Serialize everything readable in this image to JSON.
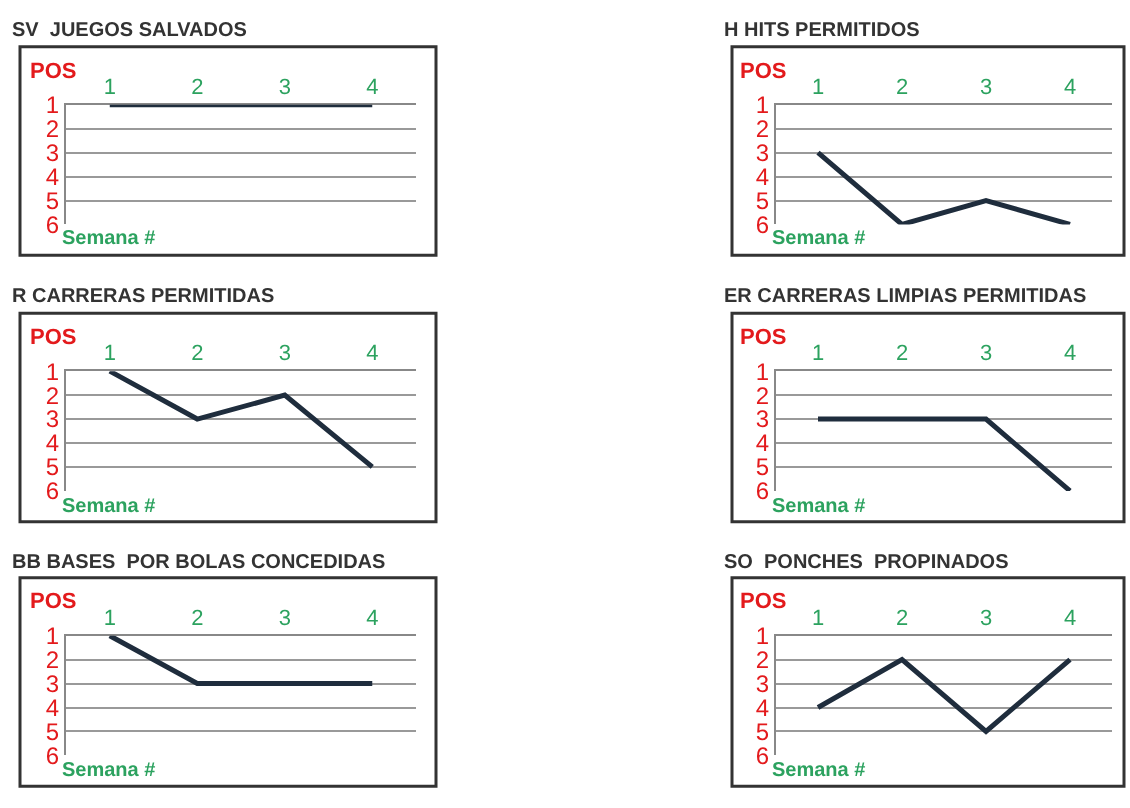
{
  "chart_data": [
    {
      "type": "line",
      "title": "SV  JUEGOS SALVADOS",
      "xlabel": "Semana #",
      "ylabel": "POS",
      "categories": [
        "1",
        "2",
        "3",
        "4"
      ],
      "series": [
        {
          "color": "#1f2d3d",
          "values": [
            1,
            1,
            1,
            1
          ]
        }
      ],
      "ylim": [
        6,
        1
      ],
      "yticks": [
        1,
        2,
        3,
        4,
        5,
        6
      ],
      "grid": "y"
    },
    {
      "type": "line",
      "title": "H HITS PERMITIDOS",
      "xlabel": "Semana #",
      "ylabel": "POS",
      "categories": [
        "1",
        "2",
        "3",
        "4"
      ],
      "series": [
        {
          "color": "#1f2d3d",
          "values": [
            3,
            6,
            5,
            6
          ]
        }
      ],
      "ylim": [
        6,
        1
      ],
      "yticks": [
        1,
        2,
        3,
        4,
        5,
        6
      ],
      "grid": "y"
    },
    {
      "type": "line",
      "title": "R CARRERAS PERMITIDAS",
      "xlabel": "Semana #",
      "ylabel": "POS",
      "categories": [
        "1",
        "2",
        "3",
        "4"
      ],
      "series": [
        {
          "color": "#1f2d3d",
          "values": [
            1,
            3,
            2,
            5
          ]
        }
      ],
      "ylim": [
        6,
        1
      ],
      "yticks": [
        1,
        2,
        3,
        4,
        5,
        6
      ],
      "grid": "y"
    },
    {
      "type": "line",
      "title": "ER CARRERAS LIMPIAS PERMITIDAS",
      "xlabel": "Semana #",
      "ylabel": "POS",
      "categories": [
        "1",
        "2",
        "3",
        "4"
      ],
      "series": [
        {
          "color": "#1f2d3d",
          "values": [
            3,
            3,
            3,
            6
          ]
        }
      ],
      "ylim": [
        6,
        1
      ],
      "yticks": [
        1,
        2,
        3,
        4,
        5,
        6
      ],
      "grid": "y"
    },
    {
      "type": "line",
      "title": "BB BASES  POR BOLAS CONCEDIDAS",
      "xlabel": "Semana #",
      "ylabel": "POS",
      "categories": [
        "1",
        "2",
        "3",
        "4"
      ],
      "series": [
        {
          "color": "#1f2d3d",
          "values": [
            1,
            3,
            3,
            3
          ]
        }
      ],
      "ylim": [
        6,
        1
      ],
      "yticks": [
        1,
        2,
        3,
        4,
        5,
        6
      ],
      "grid": "y"
    },
    {
      "type": "line",
      "title": "SO  PONCHES  PROPINADOS",
      "xlabel": "Semana #",
      "ylabel": "POS",
      "categories": [
        "1",
        "2",
        "3",
        "4"
      ],
      "series": [
        {
          "color": "#1f2d3d",
          "values": [
            4,
            2,
            5,
            2
          ]
        }
      ],
      "ylim": [
        6,
        1
      ],
      "yticks": [
        1,
        2,
        3,
        4,
        5,
        6
      ],
      "grid": "y"
    }
  ]
}
